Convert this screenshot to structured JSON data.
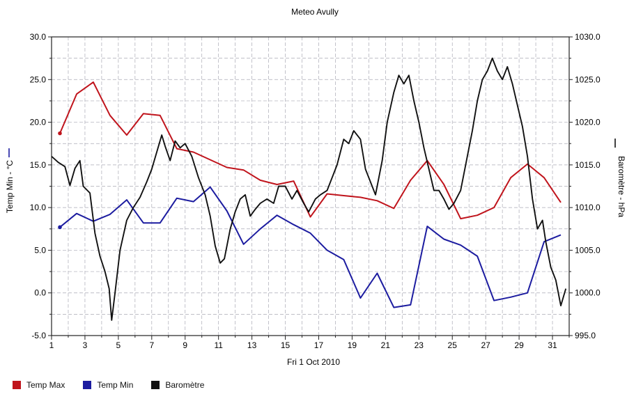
{
  "chart_data": {
    "type": "line",
    "title": "Meteo  Avully",
    "xlabel": "Fri 1 Oct 2010",
    "ylabel_left": "Temp Min - °C",
    "ylabel_right": "Baromètre - hPa",
    "xlim": [
      1,
      32
    ],
    "ylim_left": [
      -5,
      30
    ],
    "ylim_right": [
      995,
      1030
    ],
    "x_ticks": [
      "1",
      "3",
      "5",
      "7",
      "9",
      "11",
      "13",
      "15",
      "17",
      "19",
      "21",
      "23",
      "25",
      "27",
      "29",
      "31"
    ],
    "y_ticks_left": [
      "-5.0",
      "0.0",
      "5.0",
      "10.0",
      "15.0",
      "20.0",
      "25.0",
      "30.0"
    ],
    "y_ticks_right": [
      "995.0",
      "1000.0",
      "1005.0",
      "1010.0",
      "1015.0",
      "1020.0",
      "1025.0",
      "1030.0"
    ],
    "grid": true,
    "legend_position": "bottom",
    "series": [
      {
        "name": "Temp Max",
        "axis": "left",
        "color": "#c0141c",
        "points": [
          [
            1.5,
            18.7
          ],
          [
            2.5,
            23.3
          ],
          [
            3.5,
            24.7
          ],
          [
            4.5,
            20.8
          ],
          [
            5.5,
            18.5
          ],
          [
            6.5,
            21.0
          ],
          [
            7.5,
            20.8
          ],
          [
            8.5,
            16.9
          ],
          [
            9.5,
            16.5
          ],
          [
            10.5,
            15.6
          ],
          [
            11.5,
            14.7
          ],
          [
            12.5,
            14.4
          ],
          [
            13.5,
            13.2
          ],
          [
            14.5,
            12.7
          ],
          [
            15.5,
            13.1
          ],
          [
            16.5,
            8.9
          ],
          [
            17.5,
            11.6
          ],
          [
            18.5,
            11.4
          ],
          [
            19.5,
            11.2
          ],
          [
            20.5,
            10.8
          ],
          [
            21.5,
            9.9
          ],
          [
            22.5,
            13.2
          ],
          [
            23.5,
            15.5
          ],
          [
            24.5,
            12.7
          ],
          [
            25.5,
            8.7
          ],
          [
            26.5,
            9.1
          ],
          [
            27.5,
            10.0
          ],
          [
            28.5,
            13.5
          ],
          [
            29.5,
            15.1
          ],
          [
            30.5,
            13.5
          ],
          [
            31.5,
            10.6
          ]
        ]
      },
      {
        "name": "Temp Min",
        "axis": "left",
        "color": "#1c1ca0",
        "points": [
          [
            1.5,
            7.7
          ],
          [
            2.5,
            9.3
          ],
          [
            3.5,
            8.4
          ],
          [
            4.5,
            9.2
          ],
          [
            5.5,
            10.9
          ],
          [
            6.5,
            8.2
          ],
          [
            7.5,
            8.2
          ],
          [
            8.5,
            11.1
          ],
          [
            9.5,
            10.7
          ],
          [
            10.5,
            12.4
          ],
          [
            11.5,
            9.6
          ],
          [
            12.5,
            5.7
          ],
          [
            13.5,
            7.5
          ],
          [
            14.5,
            9.1
          ],
          [
            15.5,
            8.0
          ],
          [
            16.5,
            7.0
          ],
          [
            17.5,
            5.0
          ],
          [
            18.5,
            3.9
          ],
          [
            19.5,
            -0.6
          ],
          [
            20.5,
            2.3
          ],
          [
            21.5,
            -1.7
          ],
          [
            22.5,
            -1.4
          ],
          [
            23.5,
            7.8
          ],
          [
            24.5,
            6.3
          ],
          [
            25.5,
            5.6
          ],
          [
            26.5,
            4.3
          ],
          [
            27.5,
            -0.9
          ],
          [
            28.5,
            -0.5
          ],
          [
            29.5,
            0.0
          ],
          [
            30.5,
            6.0
          ],
          [
            31.5,
            6.8
          ]
        ]
      },
      {
        "name": "Baromètre",
        "axis": "right",
        "color": "#111111",
        "points": [
          [
            1.0,
            1016.0
          ],
          [
            1.4,
            1015.3
          ],
          [
            1.8,
            1014.8
          ],
          [
            2.1,
            1012.6
          ],
          [
            2.4,
            1014.6
          ],
          [
            2.7,
            1015.5
          ],
          [
            2.9,
            1012.5
          ],
          [
            3.3,
            1011.7
          ],
          [
            3.6,
            1007.0
          ],
          [
            3.9,
            1004.3
          ],
          [
            4.2,
            1002.5
          ],
          [
            4.45,
            1000.5
          ],
          [
            4.6,
            996.8
          ],
          [
            4.8,
            1000.0
          ],
          [
            5.1,
            1005.0
          ],
          [
            5.5,
            1008.5
          ],
          [
            5.9,
            1010.0
          ],
          [
            6.3,
            1011.2
          ],
          [
            6.7,
            1013.0
          ],
          [
            7.0,
            1014.5
          ],
          [
            7.3,
            1016.5
          ],
          [
            7.6,
            1018.5
          ],
          [
            7.8,
            1017.2
          ],
          [
            8.1,
            1015.5
          ],
          [
            8.4,
            1017.8
          ],
          [
            8.7,
            1017.0
          ],
          [
            9.0,
            1017.5
          ],
          [
            9.4,
            1016.0
          ],
          [
            9.8,
            1013.5
          ],
          [
            10.2,
            1011.5
          ],
          [
            10.5,
            1009.0
          ],
          [
            10.8,
            1005.5
          ],
          [
            11.1,
            1003.5
          ],
          [
            11.35,
            1004.0
          ],
          [
            11.7,
            1007.5
          ],
          [
            12.0,
            1009.5
          ],
          [
            12.3,
            1011.0
          ],
          [
            12.6,
            1011.5
          ],
          [
            12.9,
            1009.0
          ],
          [
            13.2,
            1009.8
          ],
          [
            13.5,
            1010.5
          ],
          [
            13.9,
            1011.0
          ],
          [
            14.3,
            1010.5
          ],
          [
            14.6,
            1012.5
          ],
          [
            15.0,
            1012.5
          ],
          [
            15.4,
            1011.0
          ],
          [
            15.7,
            1012.0
          ],
          [
            16.1,
            1010.5
          ],
          [
            16.4,
            1009.5
          ],
          [
            16.8,
            1011.0
          ],
          [
            17.1,
            1011.5
          ],
          [
            17.5,
            1012.0
          ],
          [
            17.8,
            1013.5
          ],
          [
            18.1,
            1015.0
          ],
          [
            18.5,
            1018.0
          ],
          [
            18.8,
            1017.5
          ],
          [
            19.1,
            1019.0
          ],
          [
            19.5,
            1018.0
          ],
          [
            19.8,
            1014.5
          ],
          [
            20.2,
            1012.5
          ],
          [
            20.4,
            1011.5
          ],
          [
            20.8,
            1015.5
          ],
          [
            21.1,
            1020.0
          ],
          [
            21.5,
            1023.5
          ],
          [
            21.8,
            1025.5
          ],
          [
            22.1,
            1024.5
          ],
          [
            22.4,
            1025.5
          ],
          [
            22.7,
            1022.5
          ],
          [
            23.0,
            1020.0
          ],
          [
            23.3,
            1017.0
          ],
          [
            23.6,
            1014.5
          ],
          [
            23.9,
            1012.0
          ],
          [
            24.2,
            1012.0
          ],
          [
            24.5,
            1011.0
          ],
          [
            24.8,
            1009.8
          ],
          [
            25.1,
            1010.5
          ],
          [
            25.5,
            1012.0
          ],
          [
            25.9,
            1016.0
          ],
          [
            26.2,
            1019.0
          ],
          [
            26.5,
            1022.5
          ],
          [
            26.8,
            1025.0
          ],
          [
            27.1,
            1026.0
          ],
          [
            27.4,
            1027.5
          ],
          [
            27.7,
            1026.0
          ],
          [
            28.0,
            1025.0
          ],
          [
            28.3,
            1026.5
          ],
          [
            28.6,
            1024.5
          ],
          [
            28.9,
            1022.0
          ],
          [
            29.2,
            1019.5
          ],
          [
            29.5,
            1016.0
          ],
          [
            29.8,
            1011.0
          ],
          [
            30.1,
            1007.5
          ],
          [
            30.4,
            1008.5
          ],
          [
            30.6,
            1006.0
          ],
          [
            30.9,
            1003.0
          ],
          [
            31.2,
            1001.5
          ],
          [
            31.5,
            998.5
          ],
          [
            31.8,
            1000.5
          ]
        ]
      }
    ]
  },
  "legend": [
    {
      "label": "Temp Max",
      "color": "#c0141c"
    },
    {
      "label": "Temp Min",
      "color": "#1c1ca0"
    },
    {
      "label": "Baromètre",
      "color": "#111111"
    }
  ]
}
